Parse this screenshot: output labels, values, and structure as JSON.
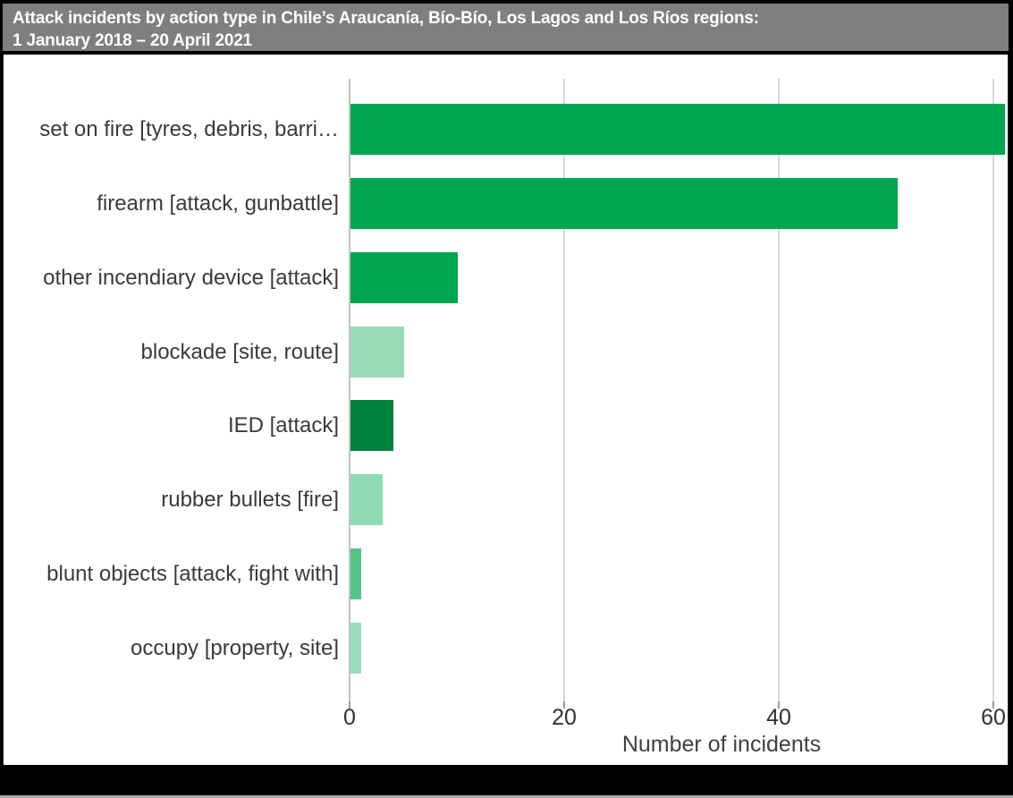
{
  "title": {
    "line1": "Attack incidents by action type in Chile’s Araucanía, Bío-Bío, Los Lagos and Los Ríos regions:",
    "line2": "1 January 2018 – 20 April 2021",
    "bg_color": "#7f7f7f",
    "text_color": "#ffffff"
  },
  "chart_data": {
    "type": "bar",
    "orientation": "horizontal",
    "title": "Attack incidents by action type in Chile’s Araucanía, Bío-Bío, Los Lagos and Los Ríos regions: 1 January 2018 – 20 April 2021",
    "categories": [
      "set on fire [tyres, debris, barri…",
      "firearm [attack, gunbattle]",
      "other incendiary device [attack]",
      "blockade [site, route]",
      "IED [attack]",
      "rubber bullets [fire]",
      "blunt objects [attack, fight with]",
      "occupy [property, site]"
    ],
    "values": [
      61,
      51,
      10,
      5,
      4,
      3,
      1,
      1
    ],
    "bar_colors": [
      "#00a551",
      "#00a551",
      "#00a551",
      "#99dab6",
      "#00823c",
      "#8edbb1",
      "#55c489",
      "#9bdcba"
    ],
    "xlabel": "Number of incidents",
    "ylabel": "",
    "x_ticks": [
      0,
      20,
      40,
      60
    ],
    "xlim": [
      0,
      62
    ],
    "grid": true,
    "gridline_color": "#d9d9d9",
    "zero_line_color": "#c2c2c2",
    "legend": "none"
  }
}
